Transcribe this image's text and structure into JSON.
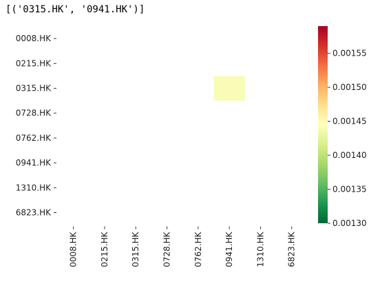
{
  "output": {
    "header_text": "[('0315.HK', '0941.HK')]"
  },
  "chart_data": {
    "type": "heatmap",
    "rows": [
      "0008.HK",
      "0215.HK",
      "0315.HK",
      "0728.HK",
      "0762.HK",
      "0941.HK",
      "1310.HK",
      "6823.HK"
    ],
    "columns": [
      "0008.HK",
      "0215.HK",
      "0315.HK",
      "0728.HK",
      "0762.HK",
      "0941.HK",
      "1310.HK",
      "6823.HK"
    ],
    "cells": [
      {
        "row": "0315.HK",
        "column": "0941.HK",
        "value": 0.00144
      }
    ],
    "empty_cells": "blank",
    "colormap": "RdYlGn_r",
    "colorbar": {
      "vmin": 0.0013,
      "vmax": 0.00159,
      "ticks": [
        0.0013,
        0.00135,
        0.0014,
        0.00145,
        0.0015,
        0.00155
      ],
      "tick_labels": [
        "0.00130",
        "0.00135",
        "0.00140",
        "0.00145",
        "0.00150",
        "0.00155"
      ],
      "colors": [
        "#006837",
        "#1a9850",
        "#66bd63",
        "#a6d96a",
        "#d9ef8b",
        "#ffffbf",
        "#fee08b",
        "#fdae61",
        "#f46d43",
        "#d73027",
        "#a50026"
      ]
    },
    "grid": false,
    "title": "",
    "xlabel": "",
    "ylabel": ""
  }
}
